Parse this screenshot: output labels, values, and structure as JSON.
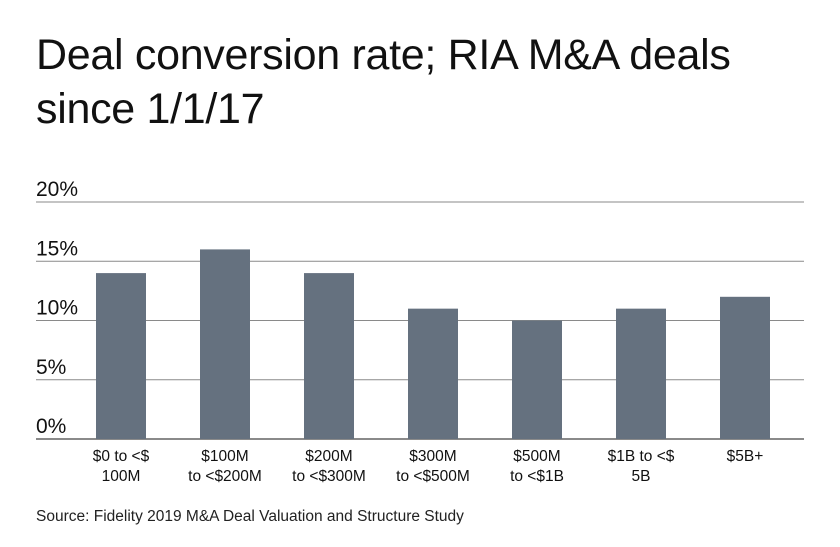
{
  "chart_data": {
    "type": "bar",
    "title": "Deal conversion rate; RIA M&A deals since 1/1/17",
    "categories": [
      [
        "$0 to <$",
        "100M"
      ],
      [
        "$100M",
        "to <$200M"
      ],
      [
        "$200M",
        "to <$300M"
      ],
      [
        "$300M",
        "to <$500M"
      ],
      [
        "$500M",
        "to <$1B"
      ],
      [
        "$1B to <$",
        "5B"
      ],
      [
        "$5B+"
      ]
    ],
    "values": [
      14,
      16,
      14,
      11,
      10,
      11,
      12
    ],
    "y_unit": "%",
    "ylim": [
      0,
      20
    ],
    "yticks": [
      0,
      5,
      10,
      15,
      20
    ],
    "ytick_labels": [
      "0%",
      "5%",
      "10%",
      "15%",
      "20%"
    ],
    "grid": true,
    "bar_color": "#65717f",
    "grid_color": "#8a8a8a"
  },
  "source": "Source: Fidelity 2019 M&A Deal Valuation and Structure Study"
}
